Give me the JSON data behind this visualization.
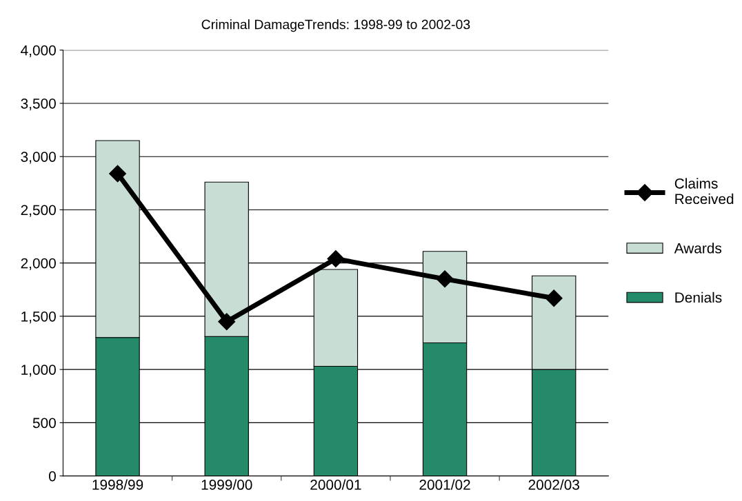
{
  "chart_data": {
    "type": "bar",
    "title": "Criminal DamageTrends: 1998-99 to 2002-03",
    "categories": [
      "1998/99",
      "1999/00",
      "2000/01",
      "2001/02",
      "2002/03"
    ],
    "stacked": true,
    "series": [
      {
        "name": "Denials",
        "color": "#258a6a",
        "values": [
          1300,
          1310,
          1030,
          1250,
          1000
        ]
      },
      {
        "name": "Awards",
        "color": "#c8ded5",
        "values": [
          1850,
          1450,
          910,
          860,
          880
        ]
      },
      {
        "name": "Claims\nReceived",
        "type": "line",
        "color": "#000000",
        "values": [
          2840,
          1450,
          2040,
          1850,
          1670
        ]
      }
    ],
    "ylim": [
      0,
      4000
    ],
    "yticks": [
      0,
      {
        "value": 500,
        "label": "500"
      },
      {
        "value": 1000,
        "label": "1,000"
      },
      {
        "value": 1500,
        "label": "1,500"
      },
      {
        "value": 2000,
        "label": "2,000"
      },
      {
        "value": 2500,
        "label": "2,500"
      },
      {
        "value": 3000,
        "label": "3,000"
      },
      {
        "value": 3500,
        "label": "3,500"
      },
      {
        "value": 4000,
        "label": "4,000"
      }
    ],
    "grid": "y",
    "legend": "right",
    "marker": "diamond",
    "line_style": "solid"
  }
}
